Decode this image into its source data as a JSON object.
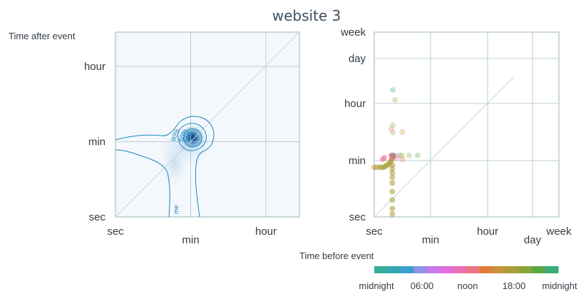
{
  "chart_data": {
    "title": "website 3",
    "colors": {
      "density_low": "#f4f8fd",
      "density_high": "#08519c",
      "contour": "#1b85b8",
      "grid": "#a9c2c8"
    },
    "panels": [
      {
        "type": "heatmap",
        "ylabel": "Time after event",
        "x_ticks": [
          "sec",
          "min",
          "hour"
        ],
        "y_ticks": [
          "sec",
          "min",
          "hour"
        ],
        "grid": true,
        "diagonal": true,
        "contour_labels": [
          "90%",
          "50%",
          "10%",
          "me"
        ]
      },
      {
        "type": "scatter",
        "x_ticks": [
          "sec",
          "min",
          "hour",
          "day",
          "week"
        ],
        "y_ticks": [
          "sec",
          "min",
          "hour",
          "day",
          "week"
        ],
        "grid": true,
        "diagonal": true,
        "points": [
          {
            "x": 0.0,
            "y": 0.88,
            "c": 0.7
          },
          {
            "x": 0.05,
            "y": 0.88,
            "c": 0.72
          },
          {
            "x": 0.1,
            "y": 0.88,
            "c": 0.72
          },
          {
            "x": 0.14,
            "y": 0.88,
            "c": 0.74
          },
          {
            "x": 0.17,
            "y": 0.88,
            "c": 0.73
          },
          {
            "x": 0.2,
            "y": 0.9,
            "c": 0.72
          },
          {
            "x": 0.23,
            "y": 0.92,
            "c": 0.75
          },
          {
            "x": 0.26,
            "y": 0.94,
            "c": 0.74
          },
          {
            "x": 0.28,
            "y": 0.97,
            "c": 0.73
          },
          {
            "x": 0.3,
            "y": 1.0,
            "c": 0.72
          },
          {
            "x": 0.31,
            "y": 1.02,
            "c": 0.71
          },
          {
            "x": 0.32,
            "y": 0.92,
            "c": 0.72
          },
          {
            "x": 0.32,
            "y": 0.85,
            "c": 0.74
          },
          {
            "x": 0.32,
            "y": 0.78,
            "c": 0.73
          },
          {
            "x": 0.32,
            "y": 0.7,
            "c": 0.72
          },
          {
            "x": 0.32,
            "y": 0.6,
            "c": 0.72
          },
          {
            "x": 0.32,
            "y": 0.45,
            "c": 0.74
          },
          {
            "x": 0.32,
            "y": 0.3,
            "c": 0.73
          },
          {
            "x": 0.32,
            "y": 0.15,
            "c": 0.72
          },
          {
            "x": 0.32,
            "y": 0.05,
            "c": 0.74
          },
          {
            "x": 0.33,
            "y": 1.08,
            "c": 0.88
          },
          {
            "x": 0.33,
            "y": 1.05,
            "c": 0.55
          },
          {
            "x": 0.3,
            "y": 1.09,
            "c": 0.5
          },
          {
            "x": 0.18,
            "y": 1.05,
            "c": 0.45
          },
          {
            "x": 0.15,
            "y": 1.02,
            "c": 0.55
          },
          {
            "x": 0.38,
            "y": 1.09,
            "c": 0.4
          },
          {
            "x": 0.4,
            "y": 1.04,
            "c": 0.45
          },
          {
            "x": 0.5,
            "y": 1.02,
            "c": 0.6
          },
          {
            "x": 0.45,
            "y": 1.09,
            "c": 0.8
          },
          {
            "x": 0.49,
            "y": 1.09,
            "c": 0.82
          },
          {
            "x": 0.62,
            "y": 1.09,
            "c": 0.84
          },
          {
            "x": 0.77,
            "y": 1.09,
            "c": 0.9
          },
          {
            "x": 0.33,
            "y": 1.62,
            "c": 0.85
          },
          {
            "x": 0.33,
            "y": 1.49,
            "c": 0.8
          },
          {
            "x": 0.37,
            "y": 2.08,
            "c": 0.8
          },
          {
            "x": 0.33,
            "y": 2.3,
            "c": 0.95
          },
          {
            "x": 0.5,
            "y": 1.5,
            "c": 0.7
          },
          {
            "x": 0.3,
            "y": 1.55,
            "c": 0.52
          }
        ]
      }
    ],
    "colorbar": {
      "label": "Time before event",
      "tick_labels": [
        "midnight",
        "06:00",
        "noon",
        "18:00",
        "midnight"
      ],
      "segments": [
        "#33ae9a",
        "#36a7b2",
        "#3aa1cc",
        "#8f92e5",
        "#c87ae9",
        "#e56edf",
        "#ec6fb3",
        "#eb7384",
        "#e07b3a",
        "#c6933a",
        "#aa9d3a",
        "#8aa43c",
        "#5aaa42",
        "#3caa78"
      ]
    }
  }
}
